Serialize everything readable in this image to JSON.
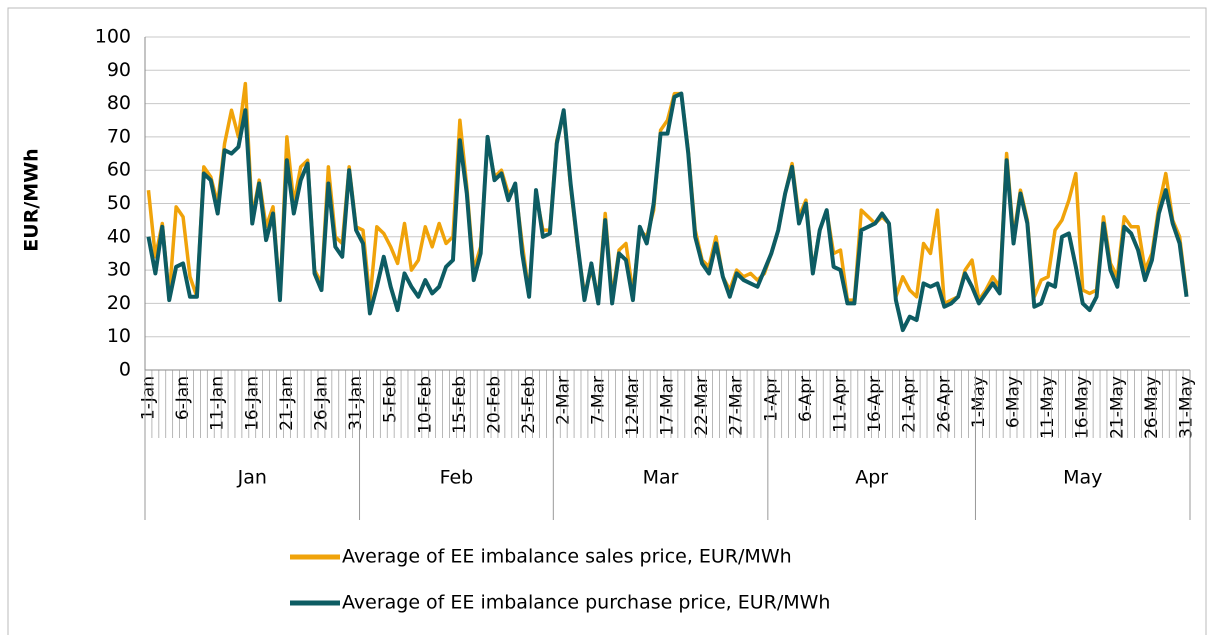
{
  "chart_data": {
    "type": "line",
    "y_label": "EUR/MWh",
    "ylim": [
      0,
      100
    ],
    "yticks": [
      0,
      10,
      20,
      30,
      40,
      50,
      60,
      70,
      80,
      90,
      100
    ],
    "grid": true,
    "category_groups": [
      {
        "label": "Jan",
        "categories": [
          "1-Jan",
          null,
          null,
          null,
          null,
          "6-Jan",
          null,
          null,
          null,
          null,
          "11-Jan",
          null,
          null,
          null,
          null,
          "16-Jan",
          null,
          null,
          null,
          null,
          "21-Jan",
          null,
          null,
          null,
          null,
          "26-Jan",
          null,
          null,
          null,
          null,
          "31-Jan"
        ]
      },
      {
        "label": "Feb",
        "categories": [
          null,
          null,
          null,
          null,
          "5-Feb",
          null,
          null,
          null,
          null,
          "10-Feb",
          null,
          null,
          null,
          null,
          "15-Feb",
          null,
          null,
          null,
          null,
          "20-Feb",
          null,
          null,
          null,
          null,
          "25-Feb",
          null,
          null,
          null
        ]
      },
      {
        "label": "Mar",
        "categories": [
          null,
          "2-Mar",
          null,
          null,
          null,
          null,
          "7-Mar",
          null,
          null,
          null,
          null,
          "12-Mar",
          null,
          null,
          null,
          null,
          "17-Mar",
          null,
          null,
          null,
          null,
          "22-Mar",
          null,
          null,
          null,
          null,
          "27-Mar",
          null,
          null,
          null,
          null
        ]
      },
      {
        "label": "Apr",
        "categories": [
          "1-Apr",
          null,
          null,
          null,
          null,
          "6-Apr",
          null,
          null,
          null,
          null,
          "11-Apr",
          null,
          null,
          null,
          null,
          "16-Apr",
          null,
          null,
          null,
          null,
          "21-Apr",
          null,
          null,
          null,
          null,
          "26-Apr",
          null,
          null,
          null,
          null
        ]
      },
      {
        "label": "May",
        "categories": [
          "1-May",
          null,
          null,
          null,
          null,
          "6-May",
          null,
          null,
          null,
          null,
          "11-May",
          null,
          null,
          null,
          null,
          "16-May",
          null,
          null,
          null,
          null,
          "21-May",
          null,
          null,
          null,
          null,
          "26-May",
          null,
          null,
          null,
          null,
          "31-May"
        ]
      }
    ],
    "legend": "bottom",
    "series": [
      {
        "name": "Average of EE imbalance sales price, EUR/MWh",
        "color": "#f0a30a",
        "values": [
          54,
          34,
          44,
          22,
          49,
          46,
          28,
          22,
          61,
          58,
          50,
          68,
          78,
          70,
          86,
          46,
          57,
          43,
          49,
          22,
          70,
          50,
          61,
          63,
          30,
          26,
          61,
          40,
          38,
          61,
          43,
          42,
          21,
          43,
          41,
          37,
          32,
          44,
          30,
          33,
          43,
          37,
          44,
          38,
          40,
          75,
          55,
          30,
          37,
          69,
          58,
          60,
          53,
          55,
          38,
          23,
          53,
          42,
          42,
          69,
          77,
          55,
          37,
          23,
          30,
          22,
          47,
          22,
          36,
          38,
          23,
          42,
          40,
          48,
          72,
          75,
          83,
          83,
          66,
          42,
          33,
          31,
          40,
          28,
          24,
          30,
          28,
          29,
          27,
          29,
          35,
          42,
          53,
          62,
          46,
          51,
          30,
          42,
          48,
          35,
          36,
          21,
          21,
          48,
          46,
          44,
          46,
          44,
          22,
          28,
          24,
          22,
          38,
          35,
          48,
          20,
          21,
          22,
          30,
          33,
          21,
          24,
          28,
          25,
          65,
          40,
          54,
          45,
          22,
          27,
          28,
          42,
          45,
          51,
          59,
          24,
          23,
          24,
          46,
          32,
          28,
          46,
          43,
          43,
          30,
          35,
          49,
          59,
          45,
          40,
          23
        ]
      },
      {
        "name": "Average of EE imbalance purchase price, EUR/MWh",
        "color": "#0d5c63",
        "values": [
          40,
          29,
          43,
          21,
          31,
          32,
          22,
          22,
          59,
          57,
          47,
          66,
          65,
          67,
          78,
          44,
          56,
          39,
          47,
          21,
          63,
          47,
          57,
          62,
          29,
          24,
          56,
          37,
          34,
          60,
          42,
          38,
          17,
          25,
          34,
          25,
          18,
          29,
          25,
          22,
          27,
          23,
          25,
          31,
          33,
          69,
          53,
          27,
          35,
          70,
          57,
          59,
          51,
          56,
          35,
          22,
          54,
          40,
          41,
          68,
          78,
          56,
          38,
          21,
          32,
          20,
          45,
          20,
          35,
          33,
          21,
          43,
          38,
          50,
          71,
          71,
          82,
          83,
          65,
          40,
          32,
          29,
          38,
          28,
          22,
          29,
          27,
          26,
          25,
          30,
          35,
          42,
          53,
          61,
          44,
          50,
          29,
          42,
          48,
          31,
          30,
          20,
          20,
          42,
          43,
          44,
          47,
          44,
          21,
          12,
          16,
          15,
          26,
          25,
          26,
          19,
          20,
          22,
          29,
          25,
          20,
          23,
          26,
          23,
          63,
          38,
          53,
          44,
          19,
          20,
          26,
          25,
          40,
          41,
          31,
          20,
          18,
          22,
          44,
          30,
          25,
          43,
          41,
          36,
          27,
          33,
          47,
          54,
          44,
          38,
          22
        ]
      }
    ]
  }
}
